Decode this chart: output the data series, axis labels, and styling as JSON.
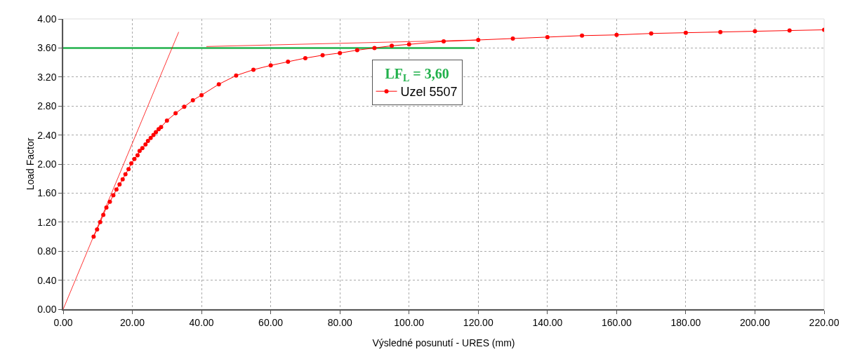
{
  "chart_data": {
    "type": "line",
    "xlabel": "Výsledné posunutí - URES (mm)",
    "ylabel": "Load Factor",
    "legend_title": "LF$_{L}$ = 3,60",
    "xlim": [
      0,
      220
    ],
    "ylim": [
      0,
      4
    ],
    "xticks": [
      {
        "value": 0,
        "label": "0.00"
      },
      {
        "value": 20,
        "label": "20.00"
      },
      {
        "value": 40,
        "label": "40.00"
      },
      {
        "value": 60,
        "label": "60.00"
      },
      {
        "value": 80,
        "label": "80.00"
      },
      {
        "value": 100,
        "label": "100.00"
      },
      {
        "value": 120,
        "label": "120.00"
      },
      {
        "value": 140,
        "label": "140.00"
      },
      {
        "value": 160,
        "label": "160.00"
      },
      {
        "value": 180,
        "label": "180.00"
      },
      {
        "value": 200,
        "label": "200.00"
      },
      {
        "value": 220,
        "label": "220.00"
      }
    ],
    "yticks": [
      {
        "value": 0,
        "label": "0.00"
      },
      {
        "value": 0.4,
        "label": "0.40"
      },
      {
        "value": 0.8,
        "label": "0.80"
      },
      {
        "value": 1.2,
        "label": "1.20"
      },
      {
        "value": 1.6,
        "label": "1.60"
      },
      {
        "value": 2,
        "label": "2.00"
      },
      {
        "value": 2.4,
        "label": "2.40"
      },
      {
        "value": 2.8,
        "label": "2.80"
      },
      {
        "value": 3.2,
        "label": "3.20"
      },
      {
        "value": 3.6,
        "label": "3.60"
      },
      {
        "value": 4,
        "label": "4.00"
      }
    ],
    "grid": true,
    "legend": "top center",
    "line_style": "solid",
    "series": [
      {
        "name": "Uzel 5507",
        "color": "#ff0000",
        "marker": "circle",
        "x": [
          8.8,
          9.8,
          10.7,
          11.6,
          12.5,
          13.5,
          14.5,
          15.4,
          16.3,
          17.2,
          18.0,
          18.9,
          19.7,
          20.6,
          21.5,
          22.1,
          22.9,
          23.8,
          24.5,
          25.3,
          26.1,
          26.8,
          27.6,
          28.3,
          30,
          32.5,
          35,
          37.5,
          40,
          45,
          50,
          55,
          60,
          65,
          70,
          75,
          80,
          85,
          90,
          95,
          100,
          110,
          120,
          130,
          140,
          150,
          160,
          170,
          180,
          190,
          200,
          210,
          220
        ],
        "values": [
          1.0,
          1.1,
          1.2,
          1.3,
          1.4,
          1.48,
          1.57,
          1.65,
          1.72,
          1.79,
          1.86,
          1.93,
          2.01,
          2.07,
          2.12,
          2.18,
          2.22,
          2.27,
          2.32,
          2.36,
          2.4,
          2.44,
          2.48,
          2.51,
          2.6,
          2.7,
          2.79,
          2.88,
          2.95,
          3.1,
          3.22,
          3.3,
          3.36,
          3.41,
          3.46,
          3.5,
          3.53,
          3.57,
          3.6,
          3.63,
          3.65,
          3.69,
          3.71,
          3.73,
          3.75,
          3.77,
          3.78,
          3.8,
          3.81,
          3.82,
          3.83,
          3.84,
          3.85
        ]
      },
      {
        "color": "#ff0000",
        "marker": "none",
        "x": [
          0,
          33.4
        ],
        "values": [
          0,
          3.82
        ]
      },
      {
        "color": "#ff0000",
        "marker": "none",
        "x": [
          41.4,
          120
        ],
        "values": [
          3.62,
          3.71
        ]
      },
      {
        "color": "#22b14c",
        "marker": "none",
        "x": [
          0,
          119
        ],
        "values": [
          3.6,
          3.6
        ]
      }
    ]
  }
}
